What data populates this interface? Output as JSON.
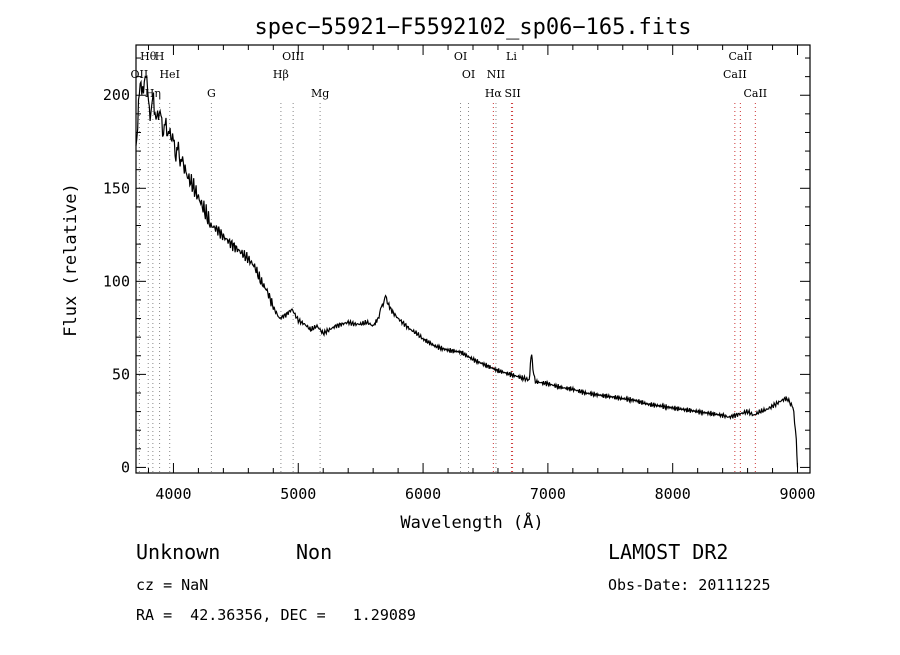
{
  "chart_data": {
    "type": "line",
    "title": "spec−55921−F5592102_sp06−165.fits",
    "xlabel": "Wavelength (Å)",
    "ylabel": "Flux (relative)",
    "xlim": [
      3700,
      9100
    ],
    "ylim": [
      -3,
      227
    ],
    "x_ticks": [
      4000,
      5000,
      6000,
      7000,
      8000,
      9000
    ],
    "y_ticks": [
      0,
      50,
      100,
      150,
      200
    ],
    "x_tick_labels": [
      "4000",
      "5000",
      "6000",
      "7000",
      "8000",
      "9000"
    ],
    "y_tick_labels": [
      "0",
      "50",
      "100",
      "150",
      "200"
    ],
    "grid": false,
    "series": [
      {
        "x": [
          3700,
          3720,
          3740,
          3760,
          3780,
          3800,
          3820,
          3840,
          3860,
          3880,
          3900,
          3920,
          3940,
          3960,
          3980,
          4000,
          4020,
          4040,
          4060,
          4080,
          4100,
          4150,
          4200,
          4250,
          4300,
          4350,
          4400,
          4450,
          4500,
          4550,
          4600,
          4650,
          4700,
          4750,
          4800,
          4850,
          4900,
          4950,
          5000,
          5050,
          5100,
          5150,
          5200,
          5250,
          5300,
          5350,
          5400,
          5450,
          5500,
          5550,
          5600,
          5640,
          5660,
          5680,
          5700,
          5720,
          5750,
          5800,
          5850,
          5900,
          5950,
          6000,
          6100,
          6200,
          6300,
          6400,
          6500,
          6600,
          6700,
          6800,
          6850,
          6860,
          6870,
          6880,
          6900,
          7000,
          7100,
          7200,
          7300,
          7400,
          7500,
          7600,
          7700,
          7800,
          7900,
          8000,
          8100,
          8200,
          8300,
          8400,
          8450,
          8500,
          8550,
          8600,
          8650,
          8700,
          8750,
          8800,
          8850,
          8900,
          8930,
          8950,
          8970,
          8990,
          9000
        ],
        "y": [
          170,
          195,
          208,
          200,
          215,
          195,
          190,
          200,
          185,
          192,
          188,
          180,
          185,
          178,
          180,
          175,
          168,
          172,
          163,
          165,
          158,
          152,
          145,
          138,
          130,
          128,
          124,
          121,
          118,
          115,
          112,
          108,
          100,
          95,
          86,
          80,
          82,
          85,
          79,
          77,
          74,
          76,
          72,
          74,
          76,
          77,
          78,
          77,
          77,
          78,
          76,
          80,
          85,
          88,
          92,
          88,
          84,
          80,
          77,
          74,
          72,
          69,
          65,
          63,
          62,
          58,
          55,
          52,
          50,
          48,
          47,
          55,
          62,
          52,
          46,
          45,
          43,
          42,
          40,
          39,
          38,
          37,
          36,
          34,
          33,
          32,
          31,
          30,
          29,
          28,
          27,
          28,
          29,
          30,
          28,
          30,
          31,
          33,
          35,
          37,
          36,
          34,
          30,
          15,
          0
        ]
      }
    ],
    "line_markers": [
      {
        "label": "Hθ",
        "x": 3798,
        "row": 0,
        "color": "#888888"
      },
      {
        "label": "OII",
        "x": 3727,
        "row": 1,
        "color": "#888888"
      },
      {
        "label": "Hη",
        "x": 3835,
        "row": 2,
        "color": "#888888"
      },
      {
        "label": "H",
        "x": 3889,
        "row": 0,
        "color": "#888888"
      },
      {
        "label": "HeI",
        "x": 3970,
        "row": 1,
        "color": "#888888"
      },
      {
        "label": "G",
        "x": 4304,
        "row": 2,
        "color": "#888888"
      },
      {
        "label": "Hβ",
        "x": 4861,
        "row": 1,
        "color": "#888888"
      },
      {
        "label": "OIII",
        "x": 4959,
        "row": 0,
        "color": "#888888"
      },
      {
        "label": "Mg",
        "x": 5175,
        "row": 2,
        "color": "#888888"
      },
      {
        "label": "OI",
        "x": 6300,
        "row": 0,
        "color": "#888888"
      },
      {
        "label": "OI",
        "x": 6364,
        "row": 1,
        "color": "#888888"
      },
      {
        "label": "Hα",
        "x": 6563,
        "row": 2,
        "color": "#cc3333"
      },
      {
        "label": "NII",
        "x": 6584,
        "row": 1,
        "color": "#888888"
      },
      {
        "label": "Li",
        "x": 6708,
        "row": 0,
        "color": "#cc3333"
      },
      {
        "label": "SII",
        "x": 6717,
        "row": 2,
        "color": "#cc3333"
      },
      {
        "label": "CaII",
        "x": 8498,
        "row": 1,
        "color": "#cc3333"
      },
      {
        "label": "CaII",
        "x": 8542,
        "row": 0,
        "color": "#cc3333"
      },
      {
        "label": "CaII",
        "x": 8662,
        "row": 2,
        "color": "#cc3333"
      }
    ]
  },
  "info": {
    "class": "Unknown",
    "subclass": "Non",
    "cz": "cz = NaN",
    "coords": "RA =  42.36356, DEC =   1.29089",
    "survey": "LAMOST DR2",
    "obs_date": "Obs-Date: 20111225"
  }
}
